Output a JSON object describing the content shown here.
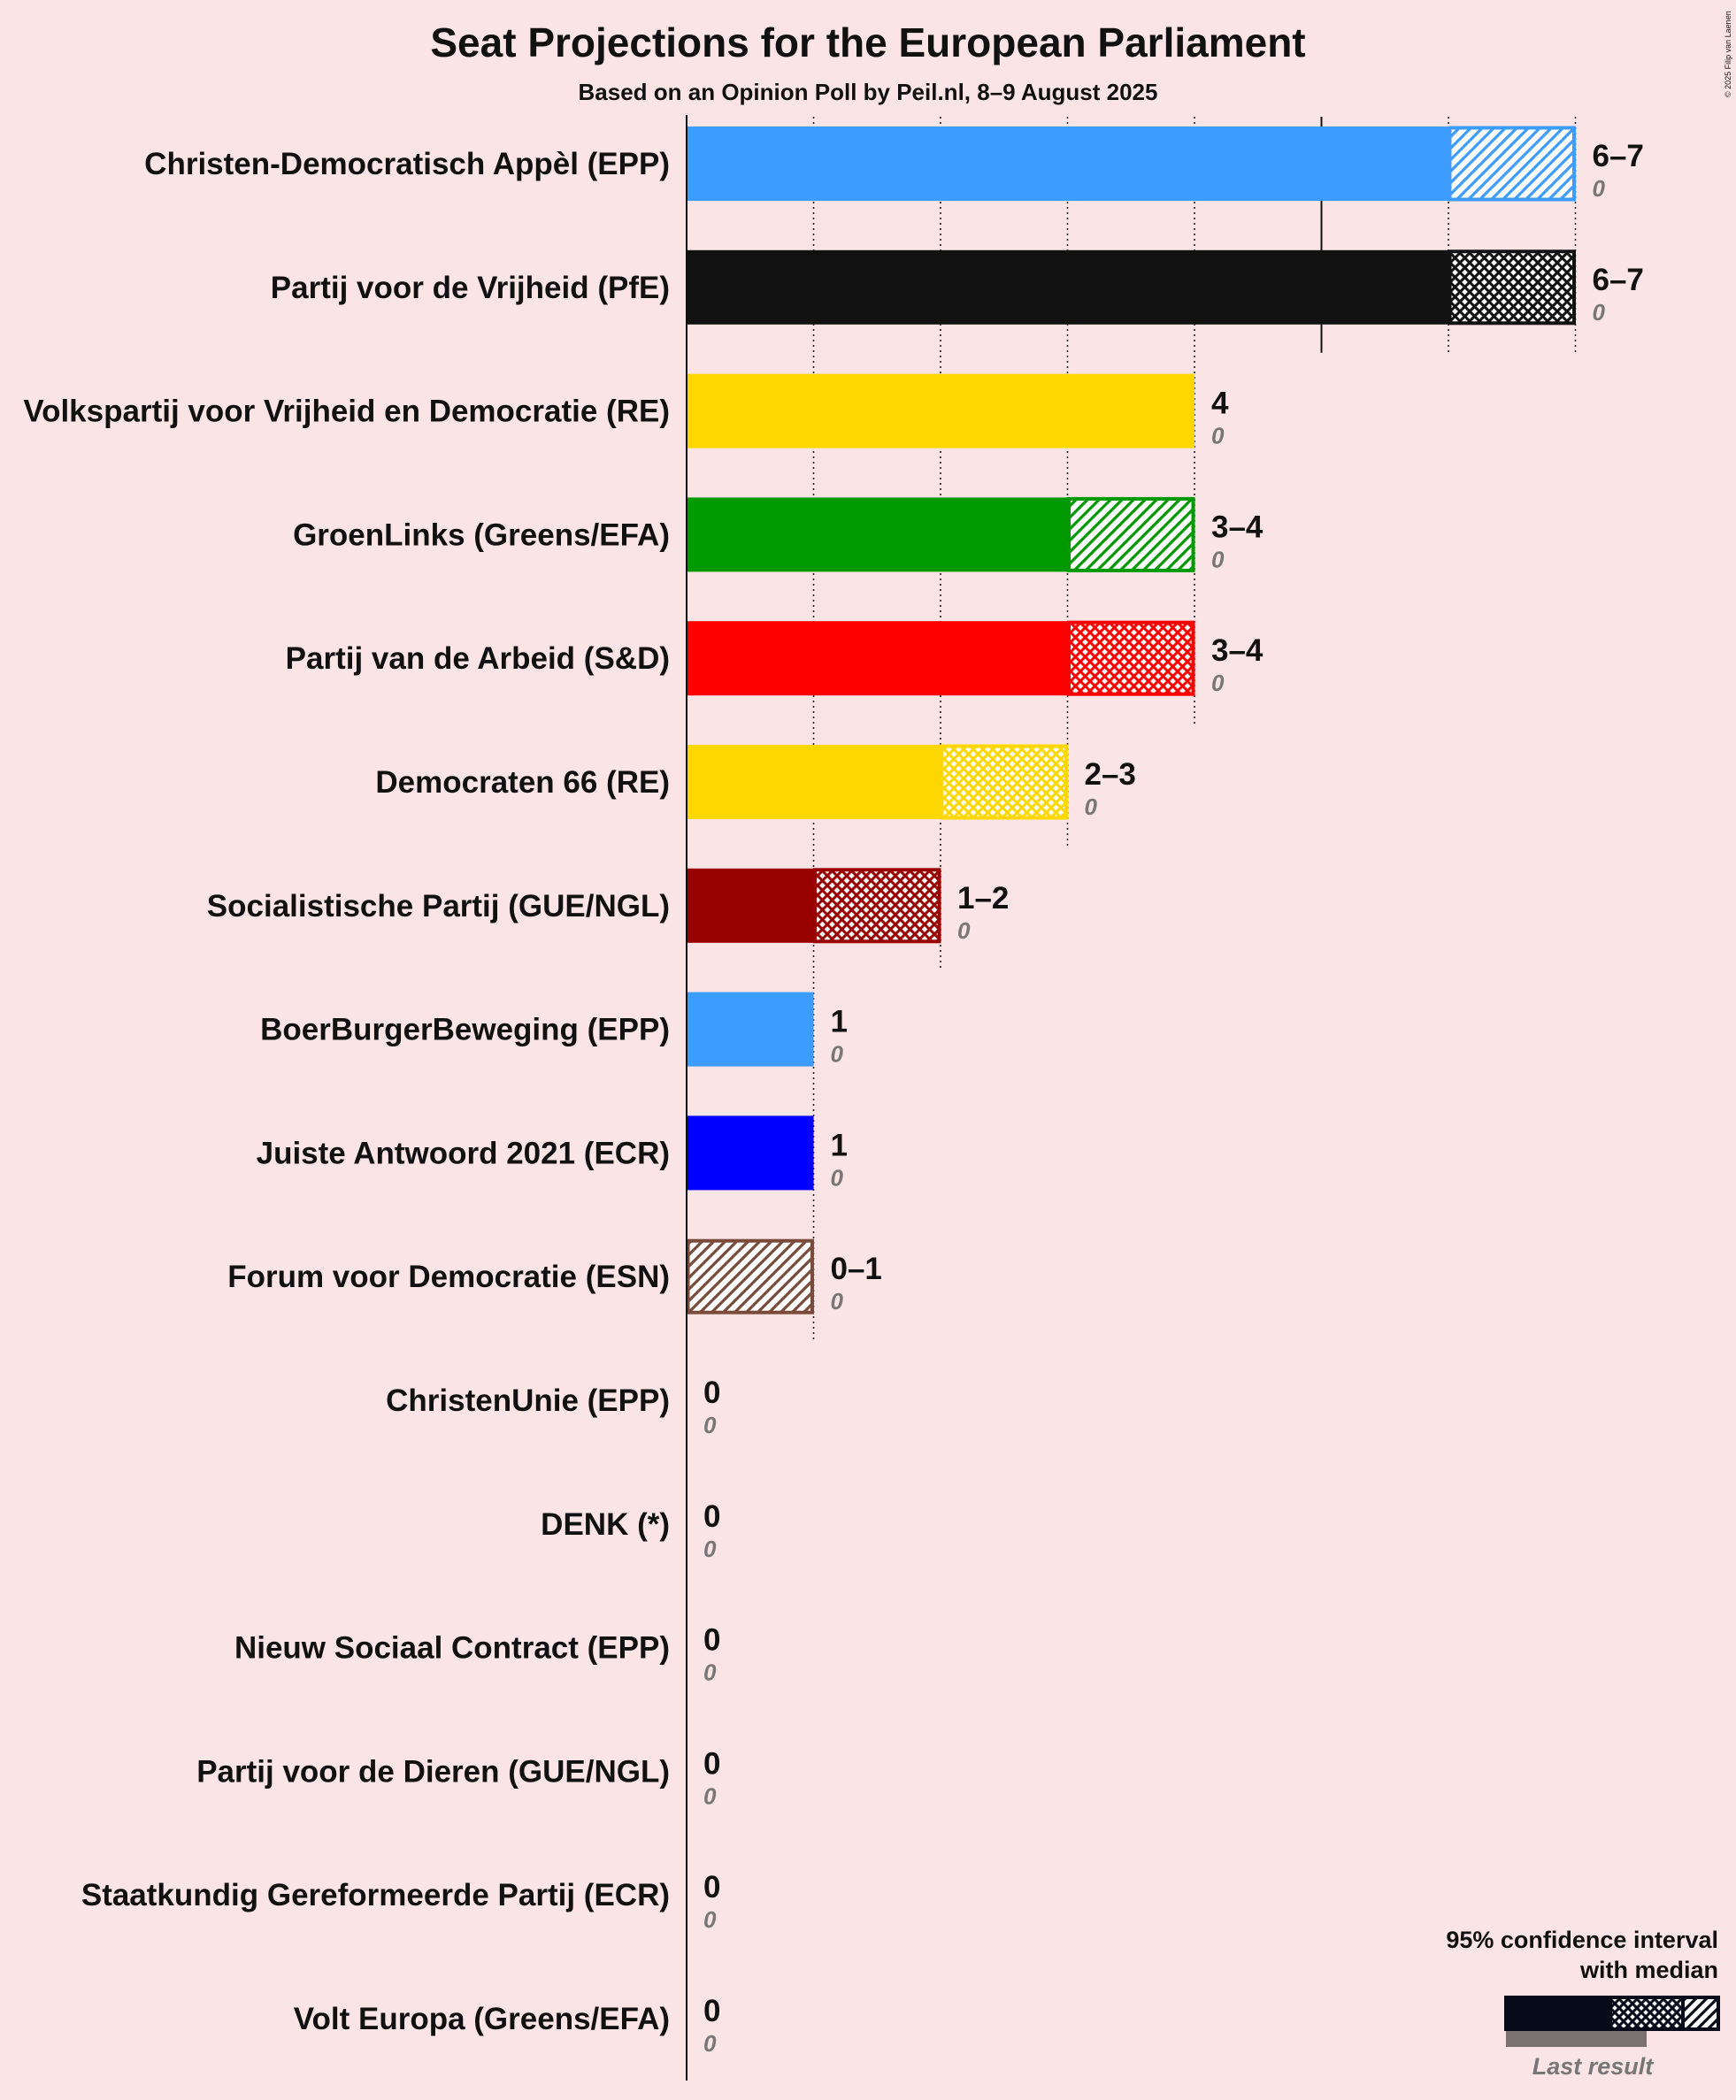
{
  "chart_data": {
    "type": "bar",
    "orientation": "horizontal",
    "title": "Seat Projections for the European Parliament",
    "subtitle": "Based on an Opinion Poll by Peil.nl, 8–9 August 2025",
    "copyright": "© 2025 Filip van Laenen",
    "xlim": [
      0,
      7
    ],
    "gridlines": [
      1,
      2,
      3,
      4,
      5,
      6,
      7
    ],
    "legend": {
      "title_line1": "95% confidence interval",
      "title_line2": "with median",
      "last_result_label": "Last result",
      "placement": "bottom-right"
    },
    "parties": [
      {
        "name": "Christen-Democratisch Appèl (EPP)",
        "low": 6,
        "median": 6,
        "high": 7,
        "label": "6–7",
        "last": "0",
        "color": "#3d9cff",
        "pattern": "diag"
      },
      {
        "name": "Partij voor de Vrijheid (PfE)",
        "low": 6,
        "median": 6,
        "high": 7,
        "label": "6–7",
        "last": "0",
        "color": "#111111",
        "pattern": "cross"
      },
      {
        "name": "Volkspartij voor Vrijheid en Democratie (RE)",
        "low": 4,
        "median": 4,
        "high": 4,
        "label": "4",
        "last": "0",
        "color": "#ffd700",
        "pattern": "none"
      },
      {
        "name": "GroenLinks (Greens/EFA)",
        "low": 3,
        "median": 3,
        "high": 4,
        "label": "3–4",
        "last": "0",
        "color": "#009900",
        "pattern": "diag"
      },
      {
        "name": "Partij van de Arbeid (S&D)",
        "low": 3,
        "median": 3,
        "high": 4,
        "label": "3–4",
        "last": "0",
        "color": "#ff0000",
        "pattern": "cross"
      },
      {
        "name": "Democraten 66 (RE)",
        "low": 2,
        "median": 2,
        "high": 3,
        "label": "2–3",
        "last": "0",
        "color": "#ffd700",
        "pattern": "cross"
      },
      {
        "name": "Socialistische Partij (GUE/NGL)",
        "low": 1,
        "median": 1,
        "high": 2,
        "label": "1–2",
        "last": "0",
        "color": "#990000",
        "pattern": "cross"
      },
      {
        "name": "BoerBurgerBeweging (EPP)",
        "low": 1,
        "median": 1,
        "high": 1,
        "label": "1",
        "last": "0",
        "color": "#3d9cff",
        "pattern": "none"
      },
      {
        "name": "Juiste Antwoord 2021 (ECR)",
        "low": 1,
        "median": 1,
        "high": 1,
        "label": "1",
        "last": "0",
        "color": "#0000ff",
        "pattern": "none"
      },
      {
        "name": "Forum voor Democratie (ESN)",
        "low": 0,
        "median": 0,
        "high": 1,
        "label": "0–1",
        "last": "0",
        "color": "#7a4a3a",
        "pattern": "diag"
      },
      {
        "name": "ChristenUnie (EPP)",
        "low": 0,
        "median": 0,
        "high": 0,
        "label": "0",
        "last": "0",
        "color": "#3d9cff",
        "pattern": "none"
      },
      {
        "name": "DENK (*)",
        "low": 0,
        "median": 0,
        "high": 0,
        "label": "0",
        "last": "0",
        "color": "#3cb4a0",
        "pattern": "none"
      },
      {
        "name": "Nieuw Sociaal Contract (EPP)",
        "low": 0,
        "median": 0,
        "high": 0,
        "label": "0",
        "last": "0",
        "color": "#3d9cff",
        "pattern": "none"
      },
      {
        "name": "Partij voor de Dieren (GUE/NGL)",
        "low": 0,
        "median": 0,
        "high": 0,
        "label": "0",
        "last": "0",
        "color": "#006b2d",
        "pattern": "none"
      },
      {
        "name": "Staatkundig Gereformeerde Partij (ECR)",
        "low": 0,
        "median": 0,
        "high": 0,
        "label": "0",
        "last": "0",
        "color": "#f47a00",
        "pattern": "none"
      },
      {
        "name": "Volt Europa (Greens/EFA)",
        "low": 0,
        "median": 0,
        "high": 0,
        "label": "0",
        "last": "0",
        "color": "#502379",
        "pattern": "none"
      }
    ]
  }
}
